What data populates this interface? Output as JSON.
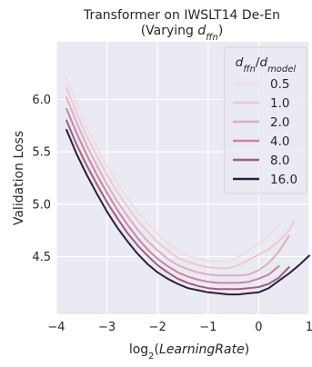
{
  "chart_data": {
    "type": "line",
    "title_line1": "Transformer on IWSLT14 De-En",
    "title_line2_prefix": "(Varying ",
    "title_line2_var": "d",
    "title_line2_sub": "ffn",
    "title_line2_suffix": ")",
    "xlabel_prefix": "log",
    "xlabel_sub": "2",
    "xlabel_open": "(",
    "xlabel_var": "LearningRate",
    "xlabel_close": ")",
    "ylabel": "Validation Loss",
    "xlim": [
      -4.0,
      1.0
    ],
    "ylim": [
      3.95,
      6.55
    ],
    "xticks": [
      -4,
      -3,
      -2,
      -1,
      0,
      1
    ],
    "xtick_labels": [
      "−4",
      "−3",
      "−2",
      "−1",
      "0",
      "1"
    ],
    "yticks": [
      4.5,
      5.0,
      5.5,
      6.0
    ],
    "ytick_labels": [
      "4.5",
      "5.0",
      "5.5",
      "6.0"
    ],
    "grid": true,
    "legend_position": "top-right",
    "legend_title_var1": "d",
    "legend_title_sub1": "ffn",
    "legend_title_slash": "/",
    "legend_title_var2": "d",
    "legend_title_sub2": "model",
    "series": [
      {
        "name": "0.5",
        "color": "#f1dde3",
        "x": [
          -3.8,
          -3.6,
          -3.4,
          -3.2,
          -3.0,
          -2.8,
          -2.6,
          -2.4,
          -2.2,
          -2.0,
          -1.8,
          -1.6,
          -1.4,
          -1.2,
          -1.0,
          -0.8,
          -0.6,
          -0.4,
          -0.2,
          0.0,
          0.2,
          0.4
        ],
        "y": [
          6.2,
          5.96,
          5.74,
          5.54,
          5.36,
          5.2,
          5.06,
          4.93,
          4.82,
          4.72,
          4.63,
          4.56,
          4.51,
          4.48,
          4.46,
          4.46,
          4.45,
          4.5,
          4.56,
          4.62,
          4.7,
          4.8
        ]
      },
      {
        "name": "1.0",
        "color": "#ecc9d2",
        "x": [
          -3.8,
          -3.6,
          -3.4,
          -3.2,
          -3.0,
          -2.8,
          -2.6,
          -2.4,
          -2.2,
          -2.0,
          -1.8,
          -1.6,
          -1.4,
          -1.2,
          -1.0,
          -0.8,
          -0.6,
          -0.4,
          -0.2,
          0.0,
          0.2,
          0.4,
          0.6,
          0.7
        ],
        "y": [
          6.11,
          5.87,
          5.65,
          5.46,
          5.28,
          5.12,
          4.98,
          4.85,
          4.74,
          4.64,
          4.56,
          4.49,
          4.45,
          4.42,
          4.4,
          4.39,
          4.39,
          4.42,
          4.47,
          4.52,
          4.57,
          4.65,
          4.75,
          4.84
        ]
      },
      {
        "name": "2.0",
        "color": "#e0adbd",
        "x": [
          -3.8,
          -3.6,
          -3.4,
          -3.2,
          -3.0,
          -2.8,
          -2.6,
          -2.4,
          -2.2,
          -2.0,
          -1.8,
          -1.6,
          -1.4,
          -1.2,
          -1.0,
          -0.8,
          -0.6,
          -0.4,
          -0.2,
          0.0,
          0.2,
          0.4,
          0.6
        ],
        "y": [
          6.02,
          5.78,
          5.56,
          5.37,
          5.19,
          5.03,
          4.89,
          4.76,
          4.65,
          4.56,
          4.48,
          4.42,
          4.38,
          4.35,
          4.33,
          4.32,
          4.32,
          4.32,
          4.33,
          4.37,
          4.44,
          4.55,
          4.7
        ]
      },
      {
        "name": "4.0",
        "color": "#cc849f",
        "x": [
          -3.8,
          -3.6,
          -3.4,
          -3.2,
          -3.0,
          -2.8,
          -2.6,
          -2.4,
          -2.2,
          -2.0,
          -1.8,
          -1.6,
          -1.4,
          -1.2,
          -1.0,
          -0.8,
          -0.6,
          -0.4,
          -0.2,
          0.0,
          0.2,
          0.4
        ],
        "y": [
          5.91,
          5.68,
          5.47,
          5.28,
          5.11,
          4.95,
          4.81,
          4.68,
          4.57,
          4.48,
          4.41,
          4.35,
          4.31,
          4.28,
          4.26,
          4.25,
          4.25,
          4.25,
          4.26,
          4.29,
          4.33,
          4.41
        ]
      },
      {
        "name": "8.0",
        "color": "#a45b85",
        "x": [
          -3.8,
          -3.6,
          -3.4,
          -3.2,
          -3.0,
          -2.8,
          -2.6,
          -2.4,
          -2.2,
          -2.0,
          -1.8,
          -1.6,
          -1.4,
          -1.2,
          -1.0,
          -0.8,
          -0.6,
          -0.4,
          -0.2,
          0.0,
          0.2,
          0.4,
          0.6
        ],
        "y": [
          5.8,
          5.57,
          5.37,
          5.19,
          5.02,
          4.87,
          4.73,
          4.61,
          4.51,
          4.42,
          4.35,
          4.29,
          4.25,
          4.22,
          4.2,
          4.19,
          4.19,
          4.19,
          4.2,
          4.21,
          4.24,
          4.3,
          4.4
        ]
      },
      {
        "name": "16.0",
        "color": "#2d1e3e",
        "x": [
          -3.8,
          -3.6,
          -3.4,
          -3.2,
          -3.0,
          -2.8,
          -2.6,
          -2.4,
          -2.2,
          -2.0,
          -1.8,
          -1.6,
          -1.4,
          -1.2,
          -1.0,
          -0.8,
          -0.6,
          -0.4,
          -0.2,
          0.0,
          0.2,
          0.4,
          0.6,
          0.8,
          1.0
        ],
        "y": [
          5.71,
          5.48,
          5.28,
          5.1,
          4.93,
          4.78,
          4.65,
          4.53,
          4.43,
          4.35,
          4.29,
          4.24,
          4.2,
          4.18,
          4.16,
          4.15,
          4.14,
          4.14,
          4.15,
          4.16,
          4.2,
          4.27,
          4.34,
          4.42,
          4.51
        ]
      }
    ]
  },
  "colors": {
    "plot_background": "#eaeaf2",
    "grid": "#ffffff",
    "legend_background": "#eaeaf2",
    "text": "#262626"
  }
}
